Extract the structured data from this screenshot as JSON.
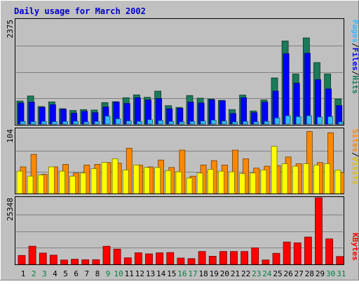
{
  "chart_data": [
    {
      "type": "bar",
      "title": "Daily usage for March 2002",
      "panel": "hits-files-pages",
      "categories": [
        "1",
        "2",
        "3",
        "4",
        "5",
        "6",
        "7",
        "8",
        "9",
        "10",
        "11",
        "12",
        "13",
        "14",
        "15",
        "16",
        "17",
        "18",
        "19",
        "20",
        "21",
        "22",
        "23",
        "24",
        "25",
        "26",
        "27",
        "28",
        "29",
        "30",
        "31"
      ],
      "weekend_days": [
        "2",
        "3",
        "9",
        "10",
        "16",
        "17",
        "23",
        "24",
        "30",
        "31"
      ],
      "ymax_label": "2375",
      "ylim": [
        0,
        2375
      ],
      "legend": [
        "Pages",
        "/",
        "Files",
        "/",
        "Hits"
      ],
      "series": [
        {
          "name": "Hits",
          "color": "#1a7a5a",
          "values": [
            525,
            640,
            400,
            505,
            350,
            310,
            330,
            320,
            490,
            510,
            600,
            665,
            610,
            750,
            420,
            380,
            650,
            590,
            570,
            540,
            330,
            660,
            300,
            550,
            1050,
            1890,
            1140,
            1960,
            1400,
            1140,
            570
          ]
        },
        {
          "name": "Files",
          "color": "#0000ff",
          "values": [
            480,
            500,
            380,
            440,
            335,
            250,
            290,
            260,
            390,
            500,
            470,
            600,
            550,
            580,
            350,
            360,
            500,
            480,
            550,
            530,
            240,
            600,
            260,
            500,
            750,
            1600,
            930,
            1610,
            1010,
            800,
            420
          ]
        },
        {
          "name": "Pages",
          "color": "#33bbff",
          "values": [
            60,
            55,
            60,
            55,
            60,
            65,
            50,
            60,
            180,
            120,
            70,
            60,
            100,
            80,
            60,
            50,
            60,
            70,
            90,
            70,
            50,
            60,
            50,
            60,
            140,
            190,
            170,
            190,
            160,
            170,
            50
          ]
        }
      ]
    },
    {
      "type": "bar",
      "panel": "sites-visits",
      "categories": [
        "1",
        "2",
        "3",
        "4",
        "5",
        "6",
        "7",
        "8",
        "9",
        "10",
        "11",
        "12",
        "13",
        "14",
        "15",
        "16",
        "17",
        "18",
        "19",
        "20",
        "21",
        "22",
        "23",
        "24",
        "25",
        "26",
        "27",
        "28",
        "29",
        "30",
        "31"
      ],
      "ymax_label": "104",
      "ylim": [
        0,
        104
      ],
      "legend": [
        "Sites",
        "/",
        "Visits"
      ],
      "series": [
        {
          "name": "Visits",
          "color": "#ff8800",
          "values": [
            43,
            63,
            31,
            43,
            47,
            33,
            46,
            47,
            50,
            49,
            73,
            46,
            43,
            54,
            42,
            70,
            28,
            46,
            53,
            46,
            70,
            56,
            41,
            44,
            45,
            59,
            48,
            100,
            50,
            98,
            34
          ]
        },
        {
          "name": "Sites",
          "color": "#ffff00",
          "values": [
            36,
            28,
            30,
            43,
            36,
            28,
            33,
            40,
            50,
            56,
            38,
            46,
            42,
            42,
            37,
            35,
            25,
            33,
            39,
            36,
            35,
            32,
            33,
            38,
            76,
            48,
            44,
            48,
            46,
            48,
            38
          ]
        }
      ]
    },
    {
      "type": "bar",
      "panel": "kbytes",
      "categories": [
        "1",
        "2",
        "3",
        "4",
        "5",
        "6",
        "7",
        "8",
        "9",
        "10",
        "11",
        "12",
        "13",
        "14",
        "15",
        "16",
        "17",
        "18",
        "19",
        "20",
        "21",
        "22",
        "23",
        "24",
        "25",
        "26",
        "27",
        "28",
        "29",
        "30",
        "31"
      ],
      "ymax_label": "25348",
      "ylim": [
        0,
        25348
      ],
      "legend": [
        "KBytes"
      ],
      "series": [
        {
          "name": "KBytes",
          "color": "#ff0000",
          "values": [
            3400,
            6900,
            4300,
            3500,
            1650,
            1950,
            1750,
            1780,
            6900,
            5800,
            2500,
            4400,
            4000,
            4400,
            4500,
            2400,
            2200,
            4900,
            3100,
            4900,
            4900,
            4900,
            6300,
            1680,
            4200,
            8500,
            8200,
            10400,
            25348,
            9700,
            3000
          ]
        }
      ]
    }
  ]
}
